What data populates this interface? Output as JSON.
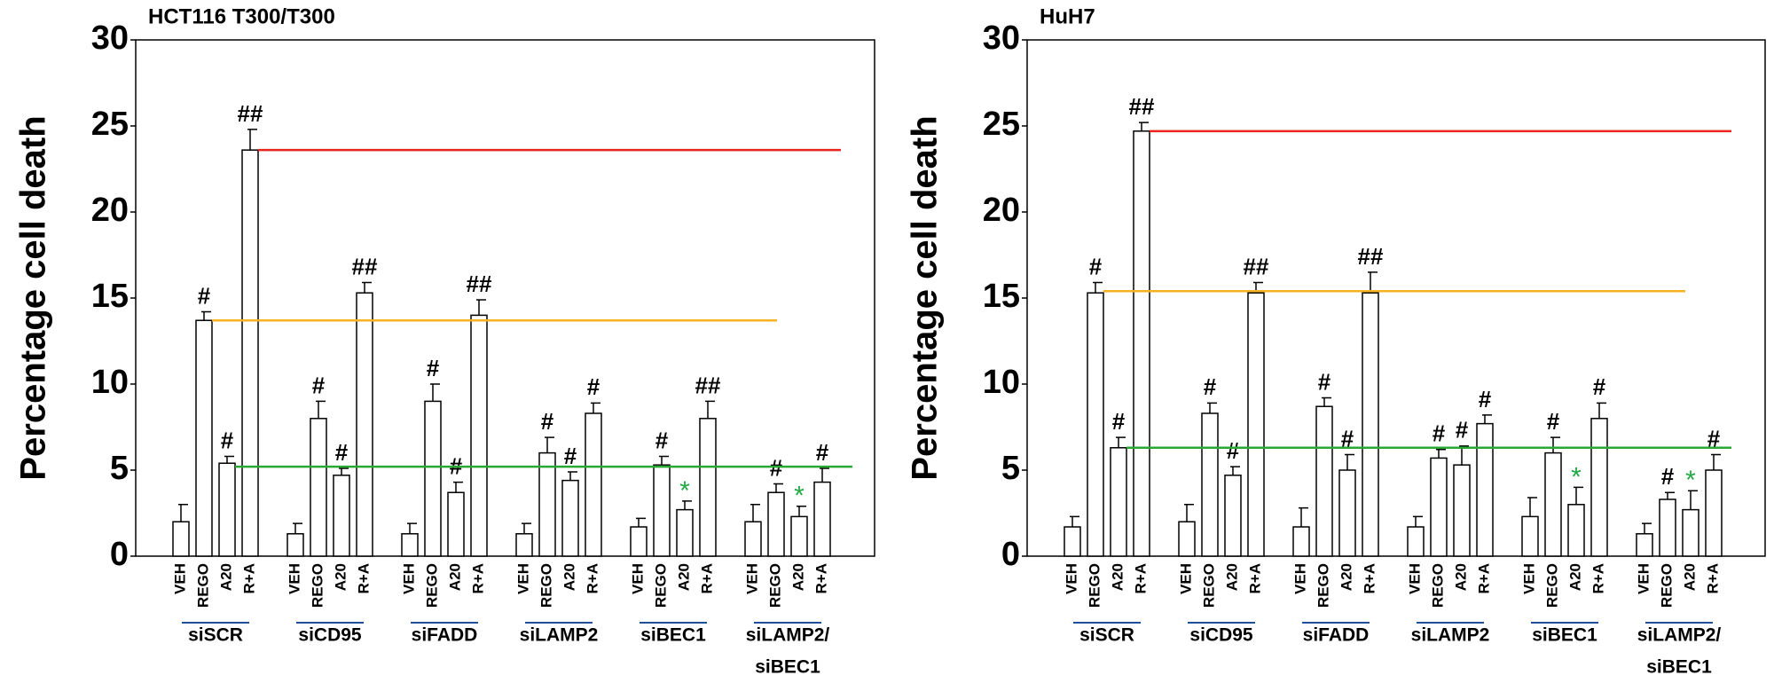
{
  "chart_data": [
    {
      "type": "bar",
      "title": "HCT116 T300/T300",
      "ylabel": "Percentage cell death",
      "ylim": [
        0,
        30
      ],
      "yticks": [
        0,
        5,
        10,
        15,
        20,
        25,
        30
      ],
      "conditions": [
        "VEH",
        "REGO",
        "A20",
        "R+A"
      ],
      "bar_color": "#ffffff",
      "annotation_colors": {
        "#": "#000000",
        "##": "#000000",
        "*": "#22aa44"
      },
      "groups": [
        {
          "name": [
            "siSCR"
          ],
          "values": [
            2.0,
            13.7,
            5.4,
            23.6
          ],
          "errors": [
            1.0,
            0.5,
            0.4,
            1.2
          ],
          "labels": [
            null,
            "#",
            "#",
            "##"
          ]
        },
        {
          "name": [
            "siCD95"
          ],
          "values": [
            1.3,
            8.0,
            4.7,
            15.3
          ],
          "errors": [
            0.6,
            1.0,
            0.4,
            0.6
          ],
          "labels": [
            null,
            "#",
            "#",
            "##"
          ]
        },
        {
          "name": [
            "siFADD"
          ],
          "values": [
            1.3,
            9.0,
            3.7,
            14.0
          ],
          "errors": [
            0.6,
            1.0,
            0.6,
            0.9
          ],
          "labels": [
            null,
            "#",
            "#",
            "##"
          ]
        },
        {
          "name": [
            "siLAMP2"
          ],
          "values": [
            1.3,
            6.0,
            4.4,
            8.3
          ],
          "errors": [
            0.6,
            0.9,
            0.5,
            0.6
          ],
          "labels": [
            null,
            "#",
            "#",
            "#"
          ]
        },
        {
          "name": [
            "siBEC1"
          ],
          "values": [
            1.7,
            5.3,
            2.7,
            8.0
          ],
          "errors": [
            0.5,
            0.5,
            0.5,
            1.0
          ],
          "labels": [
            null,
            "#",
            "*",
            "##"
          ]
        },
        {
          "name": [
            "siLAMP2/",
            "siBEC1"
          ],
          "values": [
            2.0,
            3.7,
            2.3,
            4.3
          ],
          "errors": [
            1.0,
            0.5,
            0.6,
            0.8
          ],
          "labels": [
            null,
            "#",
            "*",
            "#"
          ]
        }
      ],
      "reference_lines": [
        {
          "value": 23.6,
          "color": "#e8241c"
        },
        {
          "value": 13.7,
          "color": "#f5b324"
        },
        {
          "value": 5.2,
          "color": "#2aa834"
        }
      ]
    },
    {
      "type": "bar",
      "title": "HuH7",
      "ylabel": "Percentage cell death",
      "ylim": [
        0,
        30
      ],
      "yticks": [
        0,
        5,
        10,
        15,
        20,
        25,
        30
      ],
      "conditions": [
        "VEH",
        "REGO",
        "A20",
        "R+A"
      ],
      "bar_color": "#ffffff",
      "annotation_colors": {
        "#": "#000000",
        "##": "#000000",
        "*": "#22aa44"
      },
      "groups": [
        {
          "name": [
            "siSCR"
          ],
          "values": [
            1.7,
            15.3,
            6.3,
            24.7
          ],
          "errors": [
            0.6,
            0.6,
            0.6,
            0.5
          ],
          "labels": [
            null,
            "#",
            "#",
            "##"
          ]
        },
        {
          "name": [
            "siCD95"
          ],
          "values": [
            2.0,
            8.3,
            4.7,
            15.3
          ],
          "errors": [
            1.0,
            0.6,
            0.5,
            0.6
          ],
          "labels": [
            null,
            "#",
            "#",
            "##"
          ]
        },
        {
          "name": [
            "siFADD"
          ],
          "values": [
            1.7,
            8.7,
            5.0,
            15.3
          ],
          "errors": [
            1.1,
            0.5,
            0.9,
            1.2
          ],
          "labels": [
            null,
            "#",
            "#",
            "##"
          ]
        },
        {
          "name": [
            "siLAMP2"
          ],
          "values": [
            1.7,
            5.7,
            5.3,
            7.7
          ],
          "errors": [
            0.6,
            0.5,
            1.1,
            0.5
          ],
          "labels": [
            null,
            "#",
            "#",
            "#"
          ]
        },
        {
          "name": [
            "siBEC1"
          ],
          "values": [
            2.3,
            6.0,
            3.0,
            8.0
          ],
          "errors": [
            1.1,
            0.9,
            1.0,
            0.9
          ],
          "labels": [
            null,
            "#",
            "*",
            "#"
          ]
        },
        {
          "name": [
            "siLAMP2/",
            "siBEC1"
          ],
          "values": [
            1.3,
            3.3,
            2.7,
            5.0
          ],
          "errors": [
            0.6,
            0.4,
            1.1,
            0.9
          ],
          "labels": [
            null,
            "#",
            "*",
            "#"
          ]
        }
      ],
      "reference_lines": [
        {
          "value": 24.7,
          "color": "#e8241c"
        },
        {
          "value": 15.4,
          "color": "#f5b324"
        },
        {
          "value": 6.3,
          "color": "#2aa834"
        }
      ]
    }
  ]
}
